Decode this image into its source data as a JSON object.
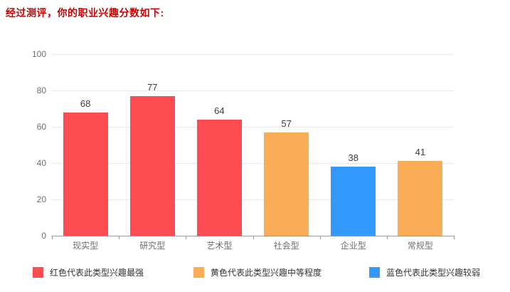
{
  "page": {
    "title": "经过测评，你的职业兴趣分数如下:",
    "title_color": "#cc0000"
  },
  "chart_data": {
    "type": "bar",
    "title": "经过测评，你的职业兴趣分数如下:",
    "categories": [
      "现实型",
      "研究型",
      "艺术型",
      "社会型",
      "企业型",
      "常规型"
    ],
    "values": [
      68,
      77,
      64,
      57,
      38,
      41
    ],
    "bar_colors": [
      "#fc4c51",
      "#fc4c51",
      "#fc4c51",
      "#fbac56",
      "#3399fc",
      "#fbac56"
    ],
    "xlabel": "",
    "ylabel": "",
    "ylim": [
      0,
      100
    ],
    "yticks": [
      0,
      20,
      40,
      60,
      80,
      100
    ],
    "grid": true,
    "legend_position": "bottom"
  },
  "legend": {
    "items": [
      {
        "label": "红色代表此类型兴趣最强",
        "color": "#fc4c51"
      },
      {
        "label": "黄色代表此类型兴趣中等程度",
        "color": "#fbac56"
      },
      {
        "label": "蓝色代表此类型兴趣较弱",
        "color": "#3399fc"
      }
    ]
  },
  "colors": {
    "axis_line": "#999999",
    "gridline": "#e8e8e8",
    "axis_label": "#6e6e6e",
    "value_label": "#3c3c3c"
  }
}
